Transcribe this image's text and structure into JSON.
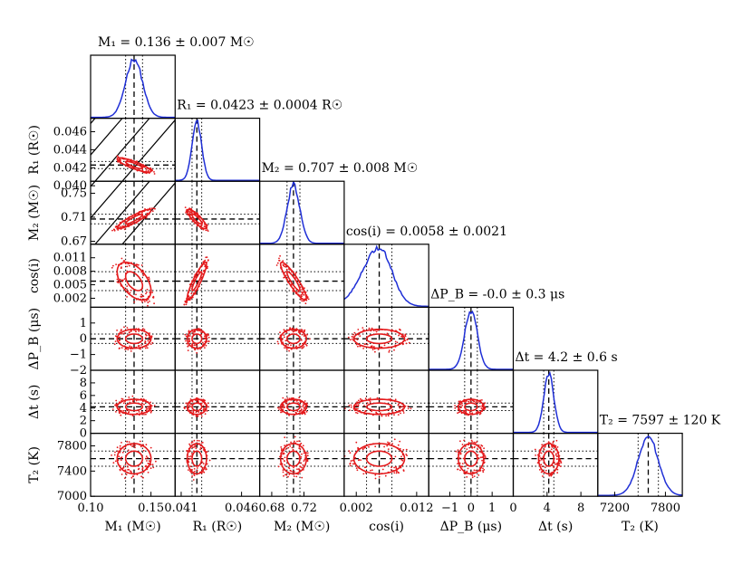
{
  "chart_data": {
    "type": "corner",
    "description_of_marks": "1D marginal histograms (blue) on the diagonal, 2D credible-region contours with samples (red) below the diagonal; dashed line = median, dotted lines = 1-sigma bounds",
    "colors": {
      "hist": "#1f2fd6",
      "contour": "#e41a1c",
      "guide": "#000000",
      "constraint_lines": "#000000"
    },
    "parameters": [
      {
        "key": "M1",
        "title": "M₁ = 0.136 ± 0.007 M☉",
        "xlabel": "M₁ (M☉)",
        "ylabel": "",
        "median": 0.136,
        "sigma": 0.007,
        "range": [
          0.1,
          0.17
        ],
        "xticks": [
          "0.10",
          "0.15"
        ],
        "xtick_values": [
          0.1,
          0.15
        ],
        "yticks": [],
        "ytick_values": []
      },
      {
        "key": "R1",
        "title": "R₁ = 0.0423 ± 0.0004 R☉",
        "xlabel": "R₁ (R☉)",
        "ylabel": "R₁ (R☉)",
        "median": 0.0423,
        "sigma": 0.0004,
        "range": [
          0.0405,
          0.0475
        ],
        "xticks": [
          "0.041",
          "0.046"
        ],
        "xtick_values": [
          0.041,
          0.046
        ],
        "yticks": [
          "0.040",
          "0.042",
          "0.044",
          "0.046"
        ],
        "ytick_values": [
          0.04,
          0.042,
          0.044,
          0.046
        ]
      },
      {
        "key": "M2",
        "title": "M₂ = 0.707 ± 0.008 M☉",
        "xlabel": "M₂ (M☉)",
        "ylabel": "M₂ (M☉)",
        "median": 0.707,
        "sigma": 0.008,
        "range": [
          0.665,
          0.77
        ],
        "xticks": [
          "0.68",
          "0.72"
        ],
        "xtick_values": [
          0.68,
          0.72
        ],
        "yticks": [
          "0.67",
          "0.71",
          "0.75"
        ],
        "ytick_values": [
          0.67,
          0.71,
          0.75
        ]
      },
      {
        "key": "cosi",
        "title": "cos(i) = 0.0058 ± 0.0021",
        "xlabel": "cos(i)",
        "ylabel": "cos(i)",
        "median": 0.0058,
        "sigma": 0.0021,
        "range": [
          0.0,
          0.014
        ],
        "xticks": [
          "0.002",
          "0.012"
        ],
        "xtick_values": [
          0.002,
          0.012
        ],
        "yticks": [
          "0.002",
          "0.005",
          "0.008",
          "0.011"
        ],
        "ytick_values": [
          0.002,
          0.005,
          0.008,
          0.011
        ]
      },
      {
        "key": "dPB",
        "title": "ΔP_B = -0.0 ± 0.3 μs",
        "xlabel": "ΔP_B (μs)",
        "ylabel": "ΔP_B (μs)",
        "median": 0.0,
        "sigma": 0.3,
        "range": [
          -2.0,
          2.0
        ],
        "xticks": [
          "−1",
          "0",
          "1"
        ],
        "xtick_values": [
          -1,
          0,
          1
        ],
        "yticks": [
          "−2",
          "−1",
          "0",
          "1"
        ],
        "ytick_values": [
          -2,
          -1,
          0,
          1
        ]
      },
      {
        "key": "dt",
        "title": "Δt = 4.2 ± 0.6 s",
        "xlabel": "Δt (s)",
        "ylabel": "Δt (s)",
        "median": 4.2,
        "sigma": 0.6,
        "range": [
          0,
          10
        ],
        "xticks": [
          "0",
          "4",
          "8"
        ],
        "xtick_values": [
          0,
          4,
          8
        ],
        "yticks": [
          "0",
          "2",
          "4",
          "6",
          "8"
        ],
        "ytick_values": [
          0,
          2,
          4,
          6,
          8
        ]
      },
      {
        "key": "T2",
        "title": "T₂ = 7597 ± 120 K",
        "xlabel": "T₂ (K)",
        "ylabel": "T₂ (K)",
        "median": 7597,
        "sigma": 120,
        "range": [
          7000,
          8000
        ],
        "xticks": [
          "7200",
          "7800"
        ],
        "xtick_values": [
          7200,
          7800
        ],
        "yticks": [
          "7000",
          "7400",
          "7800"
        ],
        "ytick_values": [
          7000,
          7400,
          7800
        ]
      }
    ]
  }
}
